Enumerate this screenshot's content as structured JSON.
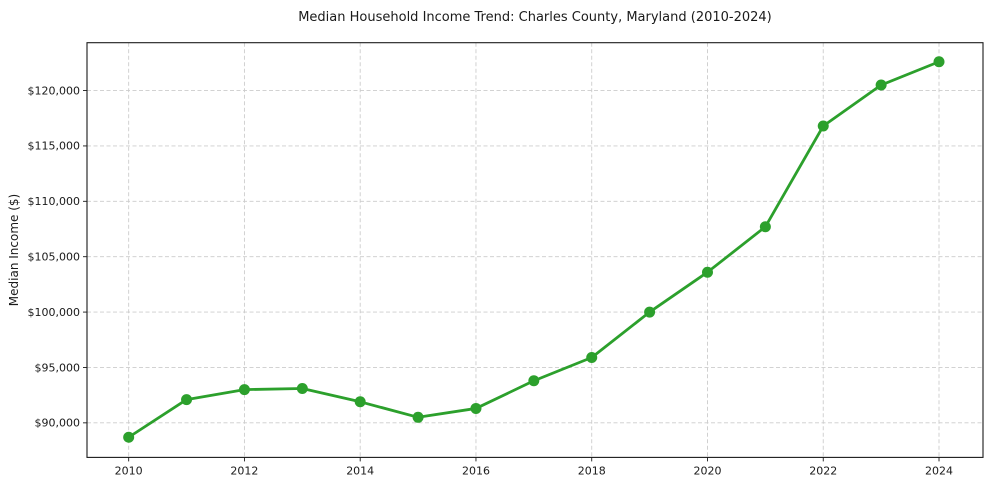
{
  "page": {
    "background_color": "#ffffff"
  },
  "chart_data": {
    "type": "line",
    "title": "Median Household Income Trend: Charles County, Maryland (2010-2024)",
    "xlabel": "",
    "ylabel": "Median Income ($)",
    "x": [
      2010,
      2011,
      2012,
      2013,
      2014,
      2015,
      2016,
      2017,
      2018,
      2019,
      2020,
      2021,
      2022,
      2023,
      2024
    ],
    "values": [
      88700,
      92100,
      93000,
      93100,
      91900,
      90500,
      91300,
      93800,
      95900,
      100000,
      103600,
      107700,
      116800,
      120500,
      122600
    ],
    "xlim": [
      2009.28,
      2024.76
    ],
    "ylim": [
      86880,
      124320
    ],
    "xticks": {
      "values": [
        2010,
        2012,
        2014,
        2016,
        2018,
        2020,
        2022,
        2024
      ],
      "labels": [
        "2010",
        "2012",
        "2014",
        "2016",
        "2018",
        "2020",
        "2022",
        "2024"
      ]
    },
    "yticks": {
      "values": [
        90000,
        95000,
        100000,
        105000,
        110000,
        115000,
        120000
      ],
      "labels": [
        "$90,000",
        "$95,000",
        "$100,000",
        "$105,000",
        "$110,000",
        "$115,000",
        "$120,000"
      ]
    },
    "grid": true,
    "grid_style": "dashed",
    "legend": "none",
    "line_color": "#2ca02c",
    "marker": "circle",
    "grid_color": "#cccccc",
    "axis_color": "#1a1a1a",
    "tick_label_color": "#1a1a1a",
    "background": "#ffffff"
  }
}
